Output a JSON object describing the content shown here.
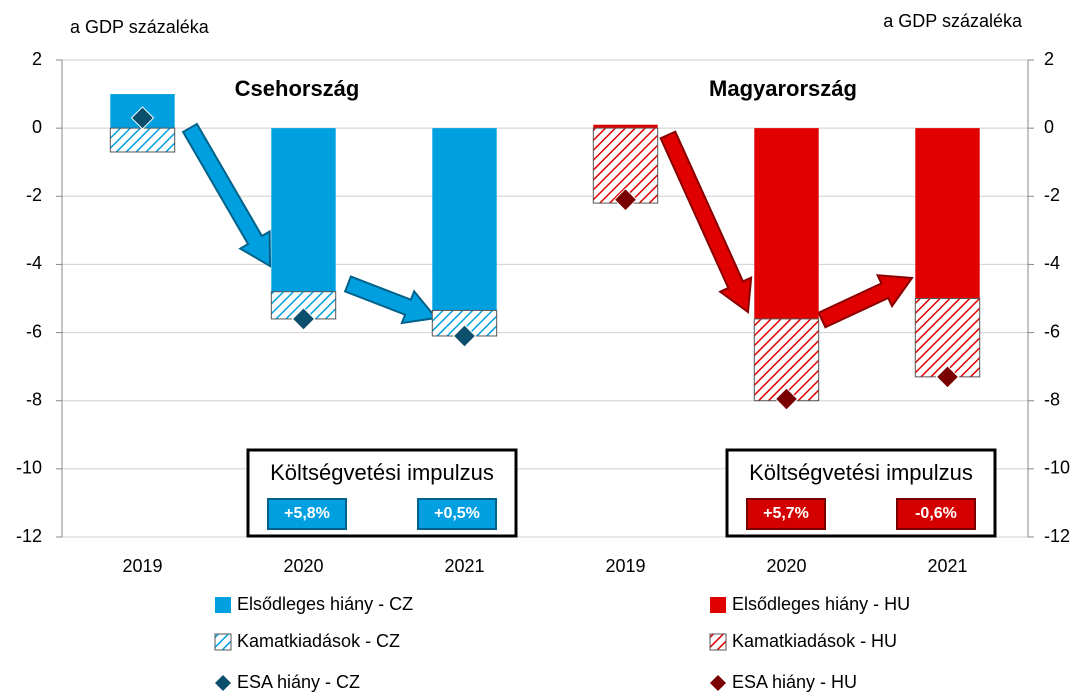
{
  "chart_data": {
    "type": "bar",
    "y_label": "a GDP százaléka",
    "y2_label": "a GDP százaléka",
    "group_titles": [
      "Csehország",
      "Magyarország"
    ],
    "categories": [
      "2019",
      "2020",
      "2021",
      "2019",
      "2020",
      "2021"
    ],
    "series": [
      {
        "name": "Elsődleges hiány - CZ",
        "color": "#00a0e0",
        "mark": "bar",
        "values": [
          1.0,
          -4.8,
          -5.35,
          null,
          null,
          null
        ]
      },
      {
        "name": "Kamatkiadások - CZ",
        "color": "#00a0e0",
        "mark": "hatch",
        "values": [
          -0.7,
          -0.8,
          -0.75,
          null,
          null,
          null
        ]
      },
      {
        "name": "ESA hiány - CZ",
        "color": "#0b4f6c",
        "mark": "diamond",
        "values": [
          0.3,
          -5.6,
          -6.1,
          null,
          null,
          null
        ]
      },
      {
        "name": "Elsődleges hiány - HU",
        "color": "#e00000",
        "mark": "bar",
        "values": [
          null,
          null,
          null,
          0.1,
          -5.6,
          -5.0
        ]
      },
      {
        "name": "Kamatkiadások - HU",
        "color": "#e00000",
        "mark": "hatch",
        "values": [
          null,
          null,
          null,
          -2.2,
          -2.4,
          -2.3
        ]
      },
      {
        "name": "ESA hiány - HU",
        "color": "#7a0000",
        "mark": "diamond",
        "values": [
          null,
          null,
          null,
          -2.1,
          -7.95,
          -7.3
        ]
      }
    ],
    "ylim": [
      -12,
      2
    ],
    "yticks": [
      -12,
      -10,
      -8,
      -6,
      -4,
      -2,
      0,
      2
    ],
    "y2lim": [
      -12,
      2
    ],
    "y2ticks": [
      -12,
      -10,
      -8,
      -6,
      -4,
      -2,
      0,
      2
    ],
    "grid": true,
    "annotations": [
      {
        "title": "Költségvetési impulzus",
        "values": [
          "+5,8%",
          "+0,5%"
        ]
      },
      {
        "title": "Költségvetési impulzus",
        "values": [
          "+5,7%",
          "-0,6%"
        ]
      }
    ]
  }
}
